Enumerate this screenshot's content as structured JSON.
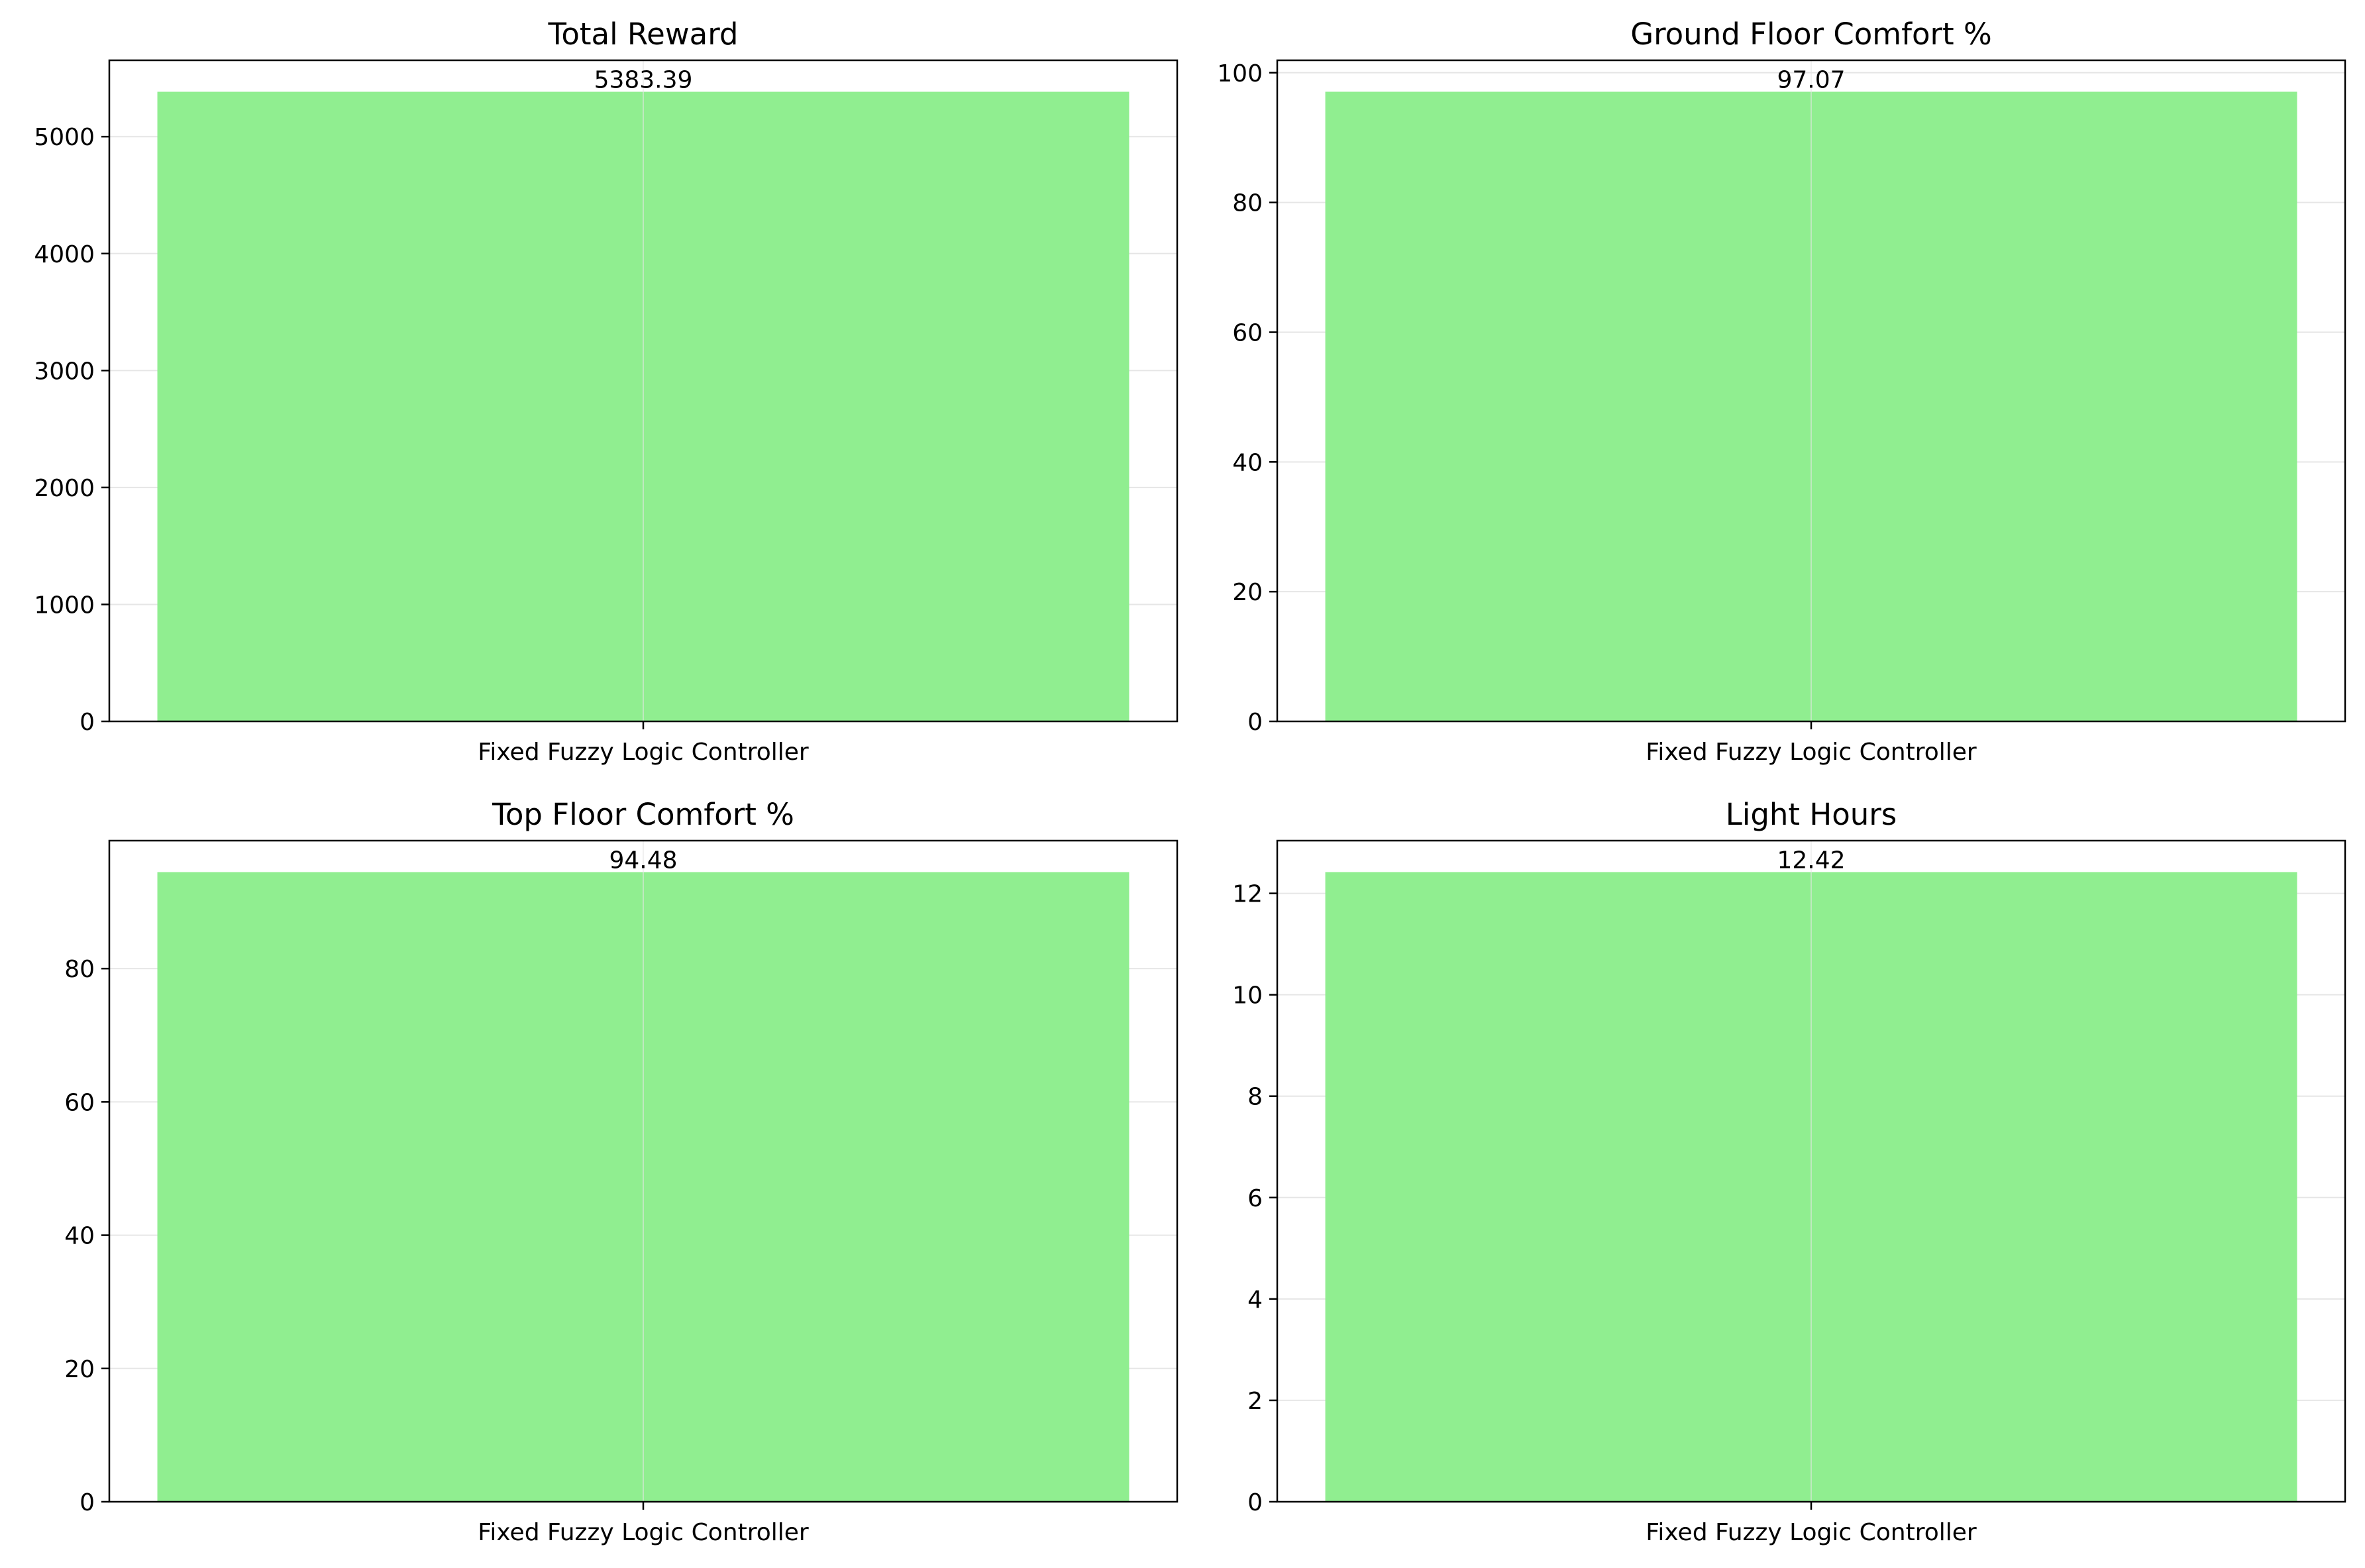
{
  "colors": {
    "bar": "#90ee90",
    "grid": "#e6e6e6",
    "axis": "#000000",
    "background": "#ffffff"
  },
  "chart_data": [
    {
      "type": "bar",
      "title": "Total Reward",
      "categories": [
        "Fixed Fuzzy Logic Controller"
      ],
      "values": [
        5383.39
      ],
      "value_labels": [
        "5383.39"
      ],
      "xlabel": "",
      "ylabel": "",
      "ylim": [
        0,
        5652.56
      ],
      "yticks": [
        0,
        1000,
        2000,
        3000,
        4000,
        5000
      ],
      "grid": true
    },
    {
      "type": "bar",
      "title": "Ground Floor Comfort %",
      "categories": [
        "Fixed Fuzzy Logic Controller"
      ],
      "values": [
        97.07
      ],
      "value_labels": [
        "97.07"
      ],
      "xlabel": "",
      "ylabel": "",
      "ylim": [
        0,
        101.92
      ],
      "yticks": [
        0,
        20,
        40,
        60,
        80,
        100
      ],
      "grid": true
    },
    {
      "type": "bar",
      "title": "Top Floor Comfort %",
      "categories": [
        "Fixed Fuzzy Logic Controller"
      ],
      "values": [
        94.48
      ],
      "value_labels": [
        "94.48"
      ],
      "xlabel": "",
      "ylabel": "",
      "ylim": [
        0,
        99.2
      ],
      "yticks": [
        0,
        20,
        40,
        60,
        80
      ],
      "grid": true
    },
    {
      "type": "bar",
      "title": "Light Hours",
      "categories": [
        "Fixed Fuzzy Logic Controller"
      ],
      "values": [
        12.42
      ],
      "value_labels": [
        "12.42"
      ],
      "xlabel": "",
      "ylabel": "",
      "ylim": [
        0,
        13.04
      ],
      "yticks": [
        0,
        2,
        4,
        6,
        8,
        10,
        12
      ],
      "grid": true
    }
  ]
}
